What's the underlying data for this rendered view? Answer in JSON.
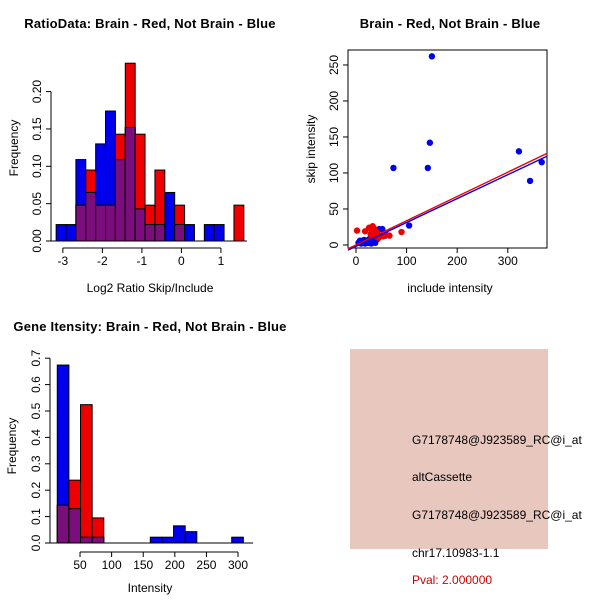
{
  "window": {
    "background": "#FFFFFF"
  },
  "colors": {
    "brain_red": "#EE0000",
    "not_brain_blue": "#0000EE",
    "overlap_purple": "#7A0E7A",
    "axis_black": "#000000"
  },
  "chart_data": [
    {
      "type": "bar",
      "subtype": "overlaid-histogram",
      "title": "RatioData: Brain - Red, Not Brain - Blue",
      "xlabel": "Log2 Ratio Skip/Include",
      "ylabel": "Frequency",
      "xlim": [
        -3.3,
        1.66
      ],
      "ylim": [
        0,
        0.249
      ],
      "x_ticks": [
        -3,
        -2,
        -1,
        0,
        1
      ],
      "x_tick_labels": [
        "-3",
        "-2",
        "-1",
        "0",
        "1"
      ],
      "y_ticks": [
        0,
        0.05,
        0.1,
        0.15,
        0.2
      ],
      "y_tick_labels": [
        "0.00",
        "0.05",
        "0.10",
        "0.15",
        "0.20"
      ],
      "bin_start": -3.17,
      "bin_width": 0.25,
      "series": [
        {
          "name": "Not Brain",
          "color": "blue",
          "values": [
            0.022,
            0.022,
            0.109,
            0.065,
            0.13,
            0.174,
            0.109,
            0.152,
            0.043,
            0.022,
            0.022,
            0.065,
            0.022,
            0.022,
            0,
            0.022,
            0.022,
            0,
            0
          ]
        },
        {
          "name": "Brain",
          "color": "red",
          "values": [
            0,
            0,
            0.048,
            0.095,
            0.048,
            0.048,
            0.143,
            0.238,
            0.143,
            0.048,
            0.095,
            0,
            0.048,
            0,
            0,
            0,
            0,
            0,
            0.048
          ]
        }
      ]
    },
    {
      "type": "scatter",
      "title": "Brain - Red, Not Brain - Blue",
      "xlabel": "include intensity",
      "ylabel": "skip intensity",
      "xlim": [
        -15.8,
        377.5
      ],
      "ylim": [
        -4.2,
        270.8
      ],
      "x_ticks": [
        0,
        100,
        200,
        300
      ],
      "x_tick_labels": [
        "0",
        "100",
        "200",
        "300"
      ],
      "y_ticks": [
        0,
        50,
        100,
        150,
        200,
        250
      ],
      "y_tick_labels": [
        "0",
        "50",
        "100",
        "150",
        "200",
        "250"
      ],
      "series": [
        {
          "name": "Not Brain",
          "color": "blue",
          "points": [
            [
              5,
              3
            ],
            [
              8,
              6
            ],
            [
              10,
              2
            ],
            [
              12,
              5
            ],
            [
              14,
              3
            ],
            [
              16,
              7
            ],
            [
              18,
              2
            ],
            [
              20,
              4
            ],
            [
              22,
              6
            ],
            [
              24,
              3
            ],
            [
              26,
              8
            ],
            [
              28,
              4
            ],
            [
              30,
              2
            ],
            [
              32,
              6
            ],
            [
              34,
              10
            ],
            [
              36,
              5
            ],
            [
              38,
              3
            ],
            [
              40,
              7
            ],
            [
              42,
              8
            ],
            [
              44,
              14
            ],
            [
              46,
              22
            ],
            [
              52,
              22
            ],
            [
              58,
              13
            ],
            [
              74,
              107
            ],
            [
              105,
              27
            ],
            [
              142,
              107
            ],
            [
              146,
              142
            ],
            [
              150,
              262
            ],
            [
              322,
              130
            ],
            [
              344,
              89
            ],
            [
              367,
              115
            ]
          ]
        },
        {
          "name": "Brain",
          "color": "red",
          "points": [
            [
              2,
              20
            ],
            [
              18,
              19
            ],
            [
              26,
              24
            ],
            [
              29,
              15
            ],
            [
              31,
              20
            ],
            [
              33,
              26
            ],
            [
              35,
              18
            ],
            [
              37,
              22
            ],
            [
              39,
              12
            ],
            [
              42,
              17
            ],
            [
              45,
              10
            ],
            [
              48,
              13
            ],
            [
              53,
              12
            ],
            [
              60,
              14
            ],
            [
              66,
              13
            ],
            [
              90,
              18
            ]
          ]
        }
      ],
      "fit_lines": [
        {
          "name": "not-brain-fit",
          "color": "blue",
          "x1": -15.8,
          "y1": -7.2,
          "x2": 377.5,
          "y2": 123.3
        },
        {
          "name": "brain-fit",
          "color": "red",
          "x1": -15.8,
          "y1": -5.3,
          "x2": 377.5,
          "y2": 127.2
        }
      ]
    },
    {
      "type": "bar",
      "subtype": "overlaid-histogram",
      "title": "Gene Itensity: Brain - Red, Not Brain - Blue",
      "xlabel": "Intensity",
      "ylabel": "Frequency",
      "xlim": [
        2.5,
        323.7
      ],
      "ylim": [
        0,
        0.731
      ],
      "x_ticks": [
        50,
        100,
        150,
        200,
        250,
        300
      ],
      "x_tick_labels": [
        "50",
        "100",
        "150",
        "200",
        "250",
        "300"
      ],
      "y_ticks": [
        0,
        0.1,
        0.2,
        0.3,
        0.4,
        0.5,
        0.6,
        0.7
      ],
      "y_tick_labels": [
        "0.0",
        "0.1",
        "0.2",
        "0.3",
        "0.4",
        "0.5",
        "0.6",
        "0.7"
      ],
      "bin_start": 14,
      "bin_width": 18.4,
      "series": [
        {
          "name": "Not Brain",
          "color": "blue",
          "values": [
            0.674,
            0.13,
            0.022,
            0.022,
            0,
            0,
            0,
            0,
            0.022,
            0.022,
            0.065,
            0.043,
            0,
            0,
            0,
            0.022
          ]
        },
        {
          "name": "Brain",
          "color": "red",
          "values": [
            0.143,
            0.238,
            0.524,
            0.095,
            0,
            0,
            0,
            0,
            0,
            0,
            0,
            0,
            0,
            0,
            0,
            0
          ]
        }
      ]
    }
  ],
  "info_panel": {
    "background": "#E8C7BE",
    "text_color": "#000000",
    "pval_color": "#CC0000",
    "lines": [
      "G7178748@J923589_RC@i_at",
      "altCassette",
      "G7178748@J923589_RC@i_at",
      "chr17.10983-1.1",
      "Pval: 2.000000"
    ]
  }
}
